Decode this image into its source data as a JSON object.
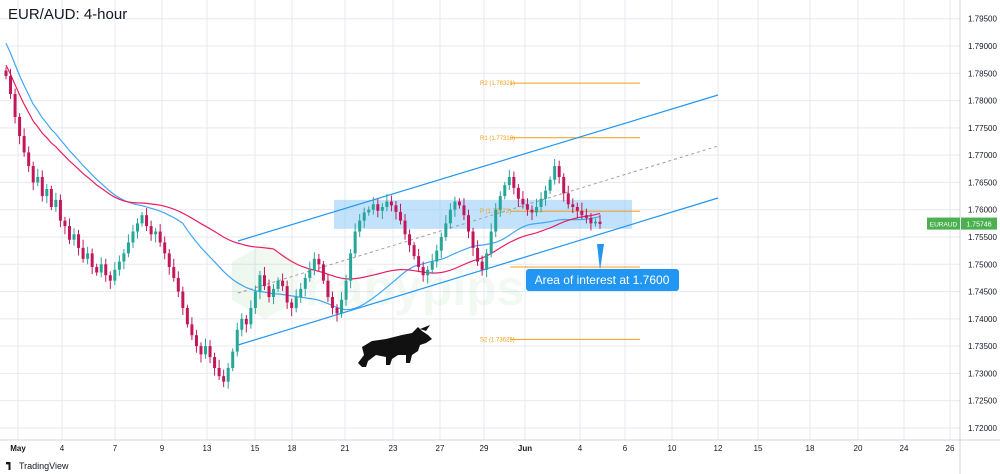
{
  "header": {
    "title": "EUR/AUD: 4-hour"
  },
  "footer": {
    "brand": "TradingView"
  },
  "colors": {
    "bull": "#26a69a",
    "bear": "#c2185b",
    "ma_fast": "#e91e63",
    "ma_slow": "#42a5f5",
    "channel": "#2196f3",
    "zone": "#90caf9",
    "pivot": "#f59c1a",
    "callout": "#2196f3",
    "price_tag": "#4caf50",
    "grid": "#e6e9ef"
  },
  "chart_data": {
    "type": "candlestick",
    "symbol": "EURAUD",
    "last_price": "1.75746",
    "ylim": [
      1.7185,
      1.797
    ],
    "y_ticks": [
      "1.79500",
      "1.79000",
      "1.78500",
      "1.78000",
      "1.77500",
      "1.77000",
      "1.76500",
      "1.76000",
      "1.75500",
      "1.75000",
      "1.74500",
      "1.74000",
      "1.73500",
      "1.73000",
      "1.72500",
      "1.72000"
    ],
    "x_ticks": [
      "May",
      "4",
      "7",
      "9",
      "13",
      "15",
      "18",
      "21",
      "23",
      "27",
      "29",
      "Jun",
      "4",
      "6",
      "10",
      "12",
      "15",
      "18",
      "20",
      "24",
      "26"
    ],
    "levels": [
      {
        "label": "R2 (1.78321)",
        "value": 1.78321
      },
      {
        "label": "R1 (1.77318)",
        "value": 1.77318
      },
      {
        "label": "P (1.75972)",
        "value": 1.75972
      },
      {
        "label": "S1",
        "value": 1.7495
      },
      {
        "label": "S2 (1.73625)",
        "value": 1.73625
      }
    ],
    "zone": {
      "low": 1.7565,
      "high": 1.7618
    },
    "annotation": {
      "text": "Area of interest at 1.7600"
    },
    "closes": [
      1.7845,
      1.7812,
      1.777,
      1.7735,
      1.7705,
      1.768,
      1.765,
      1.766,
      1.7625,
      1.7638,
      1.7605,
      1.7618,
      1.758,
      1.757,
      1.7545,
      1.7555,
      1.753,
      1.751,
      1.752,
      1.7495,
      1.7485,
      1.75,
      1.748,
      1.747,
      1.749,
      1.7505,
      1.752,
      1.754,
      1.756,
      1.7575,
      1.759,
      1.757,
      1.7555,
      1.756,
      1.754,
      1.752,
      1.7495,
      1.7475,
      1.745,
      1.742,
      1.739,
      1.737,
      1.735,
      1.7335,
      1.735,
      1.733,
      1.731,
      1.7295,
      1.7285,
      1.731,
      1.734,
      1.738,
      1.74,
      1.739,
      1.742,
      1.745,
      1.748,
      1.746,
      1.744,
      1.7455,
      1.747,
      1.746,
      1.743,
      1.742,
      1.744,
      1.7455,
      1.7475,
      1.749,
      1.751,
      1.75,
      1.747,
      1.744,
      1.742,
      1.741,
      1.7435,
      1.747,
      1.752,
      1.756,
      1.758,
      1.7595,
      1.76,
      1.761,
      1.7598,
      1.7605,
      1.7615,
      1.7608,
      1.7596,
      1.758,
      1.7555,
      1.7535,
      1.7515,
      1.7495,
      1.748,
      1.749,
      1.7505,
      1.7525,
      1.755,
      1.7575,
      1.76,
      1.7615,
      1.7608,
      1.759,
      1.756,
      1.753,
      1.7505,
      1.749,
      1.752,
      1.756,
      1.76,
      1.7625,
      1.7645,
      1.766,
      1.764,
      1.762,
      1.761,
      1.76,
      1.7595,
      1.7605,
      1.762,
      1.7635,
      1.7655,
      1.768,
      1.766,
      1.763,
      1.761,
      1.7605,
      1.7598,
      1.759,
      1.7585,
      1.7575,
      1.7578,
      1.7574
    ]
  }
}
